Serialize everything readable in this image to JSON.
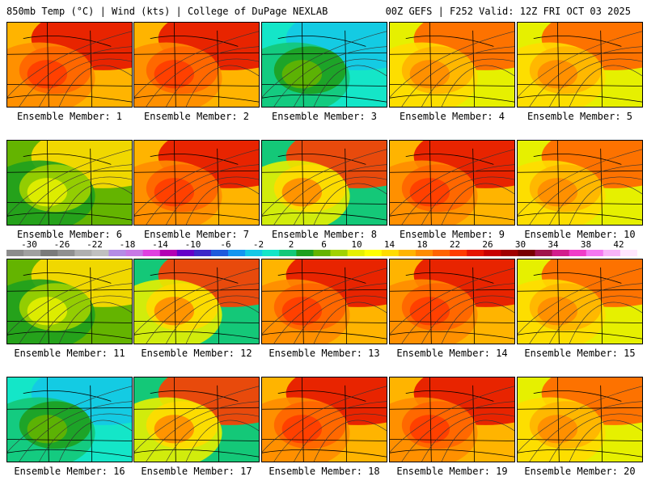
{
  "header": {
    "left_title": "850mb Temp (°C) | Wind (kts) | College of DuPage NEXLAB",
    "right_title": "00Z GEFS | F252 Valid: 12Z FRI OCT 03 2025"
  },
  "panels": [
    {
      "label": "Ensemble Member: 1",
      "pattern": "warm"
    },
    {
      "label": "Ensemble Member: 2",
      "pattern": "warm"
    },
    {
      "label": "Ensemble Member: 3",
      "pattern": "cool"
    },
    {
      "label": "Ensemble Member: 4",
      "pattern": "mild"
    },
    {
      "label": "Ensemble Member: 5",
      "pattern": "mild"
    },
    {
      "label": "Ensemble Member: 6",
      "pattern": "cooler"
    },
    {
      "label": "Ensemble Member: 7",
      "pattern": "warm"
    },
    {
      "label": "Ensemble Member: 8",
      "pattern": "mixed"
    },
    {
      "label": "Ensemble Member: 9",
      "pattern": "warm"
    },
    {
      "label": "Ensemble Member: 10",
      "pattern": "mild"
    },
    {
      "label": "Ensemble Member: 11",
      "pattern": "cooler"
    },
    {
      "label": "Ensemble Member: 12",
      "pattern": "mixed"
    },
    {
      "label": "Ensemble Member: 13",
      "pattern": "warm"
    },
    {
      "label": "Ensemble Member: 14",
      "pattern": "warm"
    },
    {
      "label": "Ensemble Member: 15",
      "pattern": "mild"
    },
    {
      "label": "Ensemble Member: 16",
      "pattern": "cool"
    },
    {
      "label": "Ensemble Member: 17",
      "pattern": "mixed"
    },
    {
      "label": "Ensemble Member: 18",
      "pattern": "warm"
    },
    {
      "label": "Ensemble Member: 19",
      "pattern": "warm"
    },
    {
      "label": "Ensemble Member: 20",
      "pattern": "mild"
    }
  ],
  "colorbar": {
    "ticks": [
      "-30",
      "-26",
      "-22",
      "-18",
      "-14",
      "-10",
      "-6",
      "-2",
      "2",
      "6",
      "10",
      "14",
      "18",
      "22",
      "26",
      "30",
      "34",
      "38",
      "42"
    ],
    "colors": [
      "#8c8c8c",
      "#a0a0a0",
      "#7a7a7a",
      "#909090",
      "#b0b0b0",
      "#c0c0c0",
      "#b48ce6",
      "#c878e6",
      "#e040e0",
      "#b400b4",
      "#6400c8",
      "#3c28c8",
      "#1e5adc",
      "#1496f0",
      "#14c8e6",
      "#14e6c8",
      "#14c878",
      "#1ea01e",
      "#64b400",
      "#a0d200",
      "#e6f000",
      "#ffff00",
      "#ffdc00",
      "#ffb400",
      "#ff8c00",
      "#ff6400",
      "#ff3c00",
      "#e61400",
      "#c80000",
      "#a00000",
      "#780000",
      "#a0144b",
      "#d21e8c",
      "#f03cc8",
      "#f478f0",
      "#f8b4f8",
      "#ffe6ff"
    ]
  }
}
